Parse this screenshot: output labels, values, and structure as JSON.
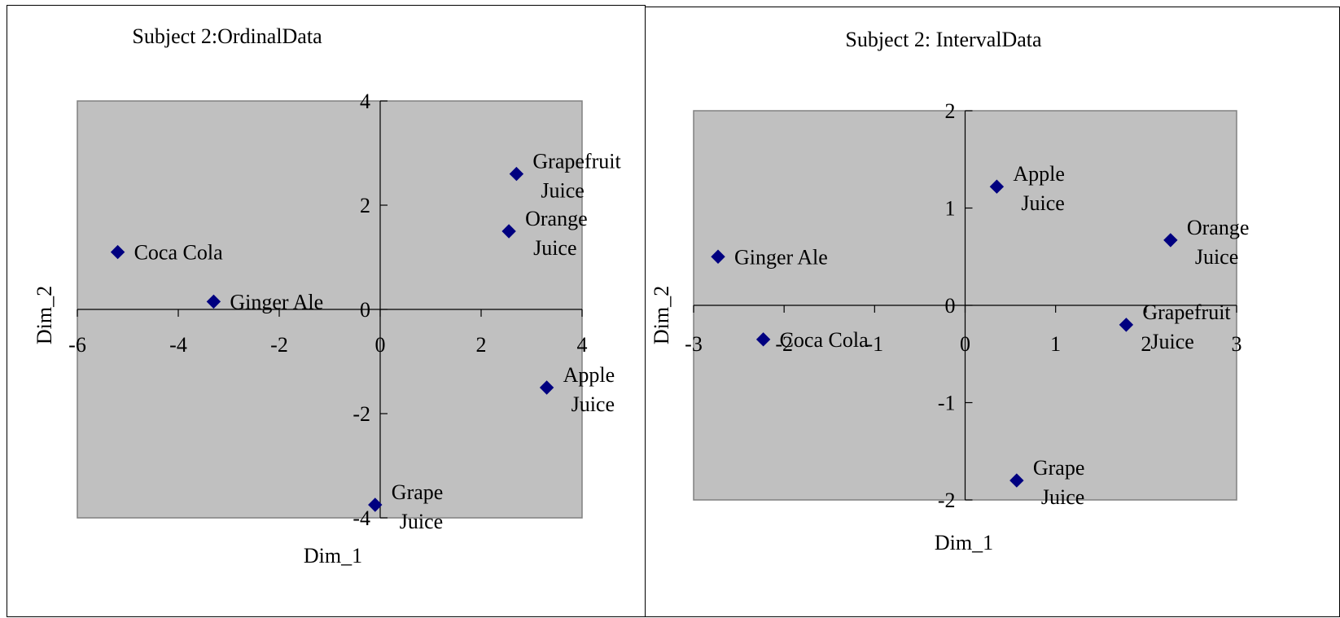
{
  "chart_data": [
    {
      "type": "scatter",
      "title": "Subject 2:OrdinalData",
      "xlabel": "Dim_1",
      "ylabel": "Dim_2",
      "xlim": [
        -6,
        4
      ],
      "ylim": [
        -4,
        4
      ],
      "xticks": [
        -6,
        -4,
        -2,
        0,
        2,
        4
      ],
      "yticks": [
        -4,
        -2,
        0,
        2,
        4
      ],
      "xtick_labels": [
        "-6",
        "-4",
        "-2",
        "0",
        "2",
        "4"
      ],
      "ytick_labels": [
        "-4",
        "-2",
        "0",
        "2",
        "4"
      ],
      "plot_background": "#c0c0c0",
      "marker_color": "#000080",
      "grid": false,
      "points": [
        {
          "x": 2.7,
          "y": 2.6,
          "label_lines": [
            "Grapefruit",
            "Juice"
          ]
        },
        {
          "x": 2.55,
          "y": 1.5,
          "label_lines": [
            "Orange",
            "Juice"
          ]
        },
        {
          "x": -5.2,
          "y": 1.1,
          "label_lines": [
            "Coca Cola"
          ]
        },
        {
          "x": -3.3,
          "y": 0.15,
          "label_lines": [
            "Ginger Ale"
          ]
        },
        {
          "x": 3.3,
          "y": -1.5,
          "label_lines": [
            "Apple",
            "Juice"
          ]
        },
        {
          "x": -0.1,
          "y": -3.75,
          "label_lines": [
            "Grape",
            "Juice"
          ]
        }
      ]
    },
    {
      "type": "scatter",
      "title": "Subject 2: IntervalData",
      "xlabel": "Dim_1",
      "ylabel": "Dim_2",
      "xlim": [
        -3,
        3
      ],
      "ylim": [
        -2,
        2
      ],
      "xticks": [
        -3,
        -2,
        -1,
        0,
        1,
        2,
        3
      ],
      "yticks": [
        -2,
        -1,
        0,
        1,
        2
      ],
      "xtick_labels": [
        "-3",
        "-2",
        "-1",
        "0",
        "1",
        "2",
        "3"
      ],
      "ytick_labels": [
        "-2",
        "-1",
        "0",
        "1",
        "2"
      ],
      "plot_background": "#c0c0c0",
      "marker_color": "#000080",
      "grid": false,
      "points": [
        {
          "x": 0.35,
          "y": 1.22,
          "label_lines": [
            "Apple",
            "Juice"
          ]
        },
        {
          "x": 2.27,
          "y": 0.67,
          "label_lines": [
            "Orange",
            "Juice"
          ]
        },
        {
          "x": -2.73,
          "y": 0.5,
          "label_lines": [
            "Ginger Ale"
          ]
        },
        {
          "x": -2.23,
          "y": -0.35,
          "label_lines": [
            "Coca Cola"
          ]
        },
        {
          "x": 1.78,
          "y": -0.2,
          "label_lines": [
            "Grapefruit",
            "Juice"
          ]
        },
        {
          "x": 0.57,
          "y": -1.8,
          "label_lines": [
            "Grape",
            "Juice"
          ]
        }
      ]
    }
  ]
}
